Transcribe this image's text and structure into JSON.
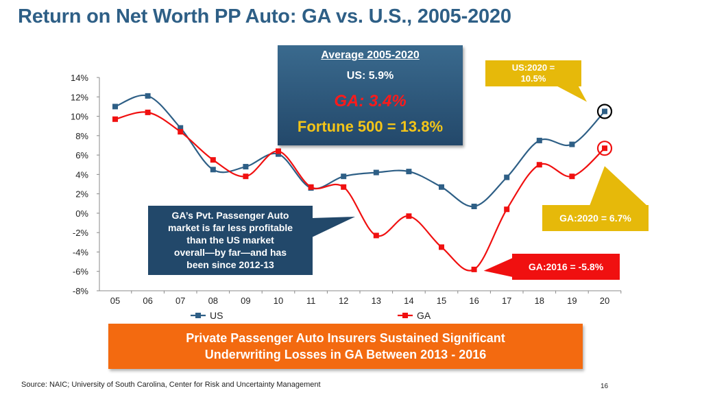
{
  "title": "Return on Net Worth PP Auto: GA vs. U.S., 2005-2020",
  "average_box": {
    "title": "Average 2005-2020",
    "us": "US: 5.9%",
    "ga": "GA: 3.4%",
    "fortune": "Fortune 500 = 13.8%"
  },
  "callouts": {
    "us_2020": [
      "US:2020 =",
      "10.5%"
    ],
    "ga_2020": "GA:2020 = 6.7%",
    "ga_2016": "GA:2016 = -5.8%",
    "ga_pvt": [
      "GA’s Pvt. Passenger Auto",
      "market is far less profitable",
      "than the US market",
      "overall—by far—and has",
      "been since 2012-13"
    ]
  },
  "banner": [
    "Private Passenger Auto Insurers Sustained Significant",
    "Underwriting Losses in GA Between 2013 - 2016"
  ],
  "source": "Source: NAIC; University of South Carolina, Center for Risk and Uncertainty Management",
  "page_number": "16",
  "colors": {
    "us_series": "#2e5f86",
    "ga_series": "#f01010",
    "title": "#2e5f86",
    "callout_yellow": "#e6b90a",
    "banner_orange": "#f36a10"
  },
  "chart_data": {
    "type": "line",
    "categories": [
      "05",
      "06",
      "07",
      "08",
      "09",
      "10",
      "11",
      "12",
      "13",
      "14",
      "15",
      "16",
      "17",
      "18",
      "19",
      "20"
    ],
    "series": [
      {
        "name": "US",
        "values": [
          11.0,
          12.1,
          8.8,
          4.5,
          4.8,
          6.1,
          2.6,
          3.8,
          4.2,
          4.3,
          2.7,
          0.7,
          3.7,
          7.5,
          7.1,
          10.5
        ]
      },
      {
        "name": "GA",
        "values": [
          9.7,
          10.4,
          8.4,
          5.5,
          3.8,
          6.4,
          2.7,
          2.7,
          -2.3,
          -0.3,
          -3.5,
          -5.8,
          0.4,
          5.0,
          3.8,
          6.7
        ]
      }
    ],
    "y_tick_labels": [
      "14%",
      "12%",
      "10%",
      "8%",
      "6%",
      "4%",
      "2%",
      "0%",
      "-2%",
      "-4%",
      "-6%",
      "-8%"
    ],
    "ylim": [
      -8,
      14
    ],
    "y_step": 2,
    "legend_position": "bottom",
    "grid": false
  }
}
